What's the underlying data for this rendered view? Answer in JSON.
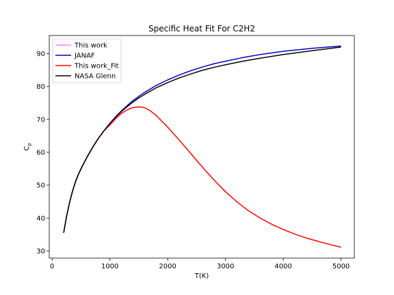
{
  "chart_data": {
    "type": "line",
    "title": "Specific Heat Fit For C2H2",
    "xlabel": "T(K)",
    "ylabel_main": "C",
    "ylabel_sub": "p",
    "xlim": [
      -50,
      5230
    ],
    "ylim": [
      27.8,
      95.5
    ],
    "xticks": [
      0,
      1000,
      2000,
      3000,
      4000,
      5000
    ],
    "yticks": [
      30,
      40,
      50,
      60,
      70,
      80,
      90
    ],
    "grid": false,
    "legend_position": "top-left",
    "series": [
      {
        "name": "This work",
        "color": "#ee82ee",
        "x": [
          200,
          250,
          300,
          350,
          400,
          450,
          500,
          600,
          700,
          800,
          900,
          1000
        ],
        "y": [
          35.5,
          40.5,
          44.6,
          48.0,
          50.8,
          53.1,
          55.0,
          58.4,
          61.5,
          64.2,
          66.5,
          68.5
        ]
      },
      {
        "name": "JANAF",
        "color": "#0000cc",
        "x": [
          200,
          250,
          300,
          350,
          400,
          450,
          500,
          600,
          700,
          800,
          900,
          1000,
          1100,
          1200,
          1300,
          1400,
          1500,
          1600,
          1800,
          2000,
          2200,
          2400,
          2600,
          2800,
          3000,
          3300,
          3600,
          4000,
          4500,
          5000
        ],
        "y": [
          35.5,
          40.5,
          44.6,
          48.0,
          50.8,
          53.1,
          55.0,
          58.4,
          61.5,
          64.2,
          66.6,
          68.8,
          70.8,
          72.6,
          74.2,
          75.7,
          77.0,
          78.2,
          80.3,
          82.0,
          83.5,
          84.8,
          85.9,
          86.9,
          87.7,
          88.8,
          89.7,
          90.7,
          91.6,
          92.3
        ]
      },
      {
        "name": "This work_Fit",
        "color": "#ff0000",
        "x": [
          200,
          250,
          300,
          350,
          400,
          450,
          500,
          600,
          700,
          800,
          900,
          1000,
          1100,
          1200,
          1300,
          1400,
          1500,
          1600,
          1700,
          1800,
          2000,
          2200,
          2400,
          2600,
          2800,
          3000,
          3200,
          3400,
          3600,
          3800,
          4000,
          4200,
          4400,
          4600,
          4800,
          5000
        ],
        "y": [
          35.5,
          40.5,
          44.6,
          48.0,
          50.8,
          53.1,
          55.0,
          58.4,
          61.5,
          64.2,
          66.6,
          68.3,
          70.2,
          71.8,
          72.9,
          73.6,
          73.8,
          73.6,
          72.6,
          71.2,
          67.6,
          63.7,
          59.6,
          55.5,
          51.6,
          48.0,
          44.9,
          42.2,
          40.0,
          38.1,
          36.5,
          35.1,
          33.9,
          32.9,
          32.0,
          31.1
        ]
      },
      {
        "name": "NASA Glenn",
        "color": "#000000",
        "x": [
          200,
          250,
          300,
          350,
          400,
          450,
          500,
          600,
          700,
          800,
          900,
          1000,
          1100,
          1200,
          1300,
          1400,
          1500,
          1600,
          1800,
          2000,
          2200,
          2400,
          2600,
          2800,
          3000,
          3300,
          3600,
          4000,
          4500,
          5000
        ],
        "y": [
          35.5,
          40.5,
          44.6,
          48.0,
          50.8,
          53.1,
          55.0,
          58.4,
          61.5,
          64.2,
          66.6,
          68.8,
          70.7,
          72.4,
          73.9,
          75.3,
          76.5,
          77.6,
          79.6,
          81.2,
          82.6,
          83.8,
          84.9,
          85.8,
          86.6,
          87.7,
          88.6,
          89.7,
          90.9,
          92.0
        ]
      }
    ]
  }
}
